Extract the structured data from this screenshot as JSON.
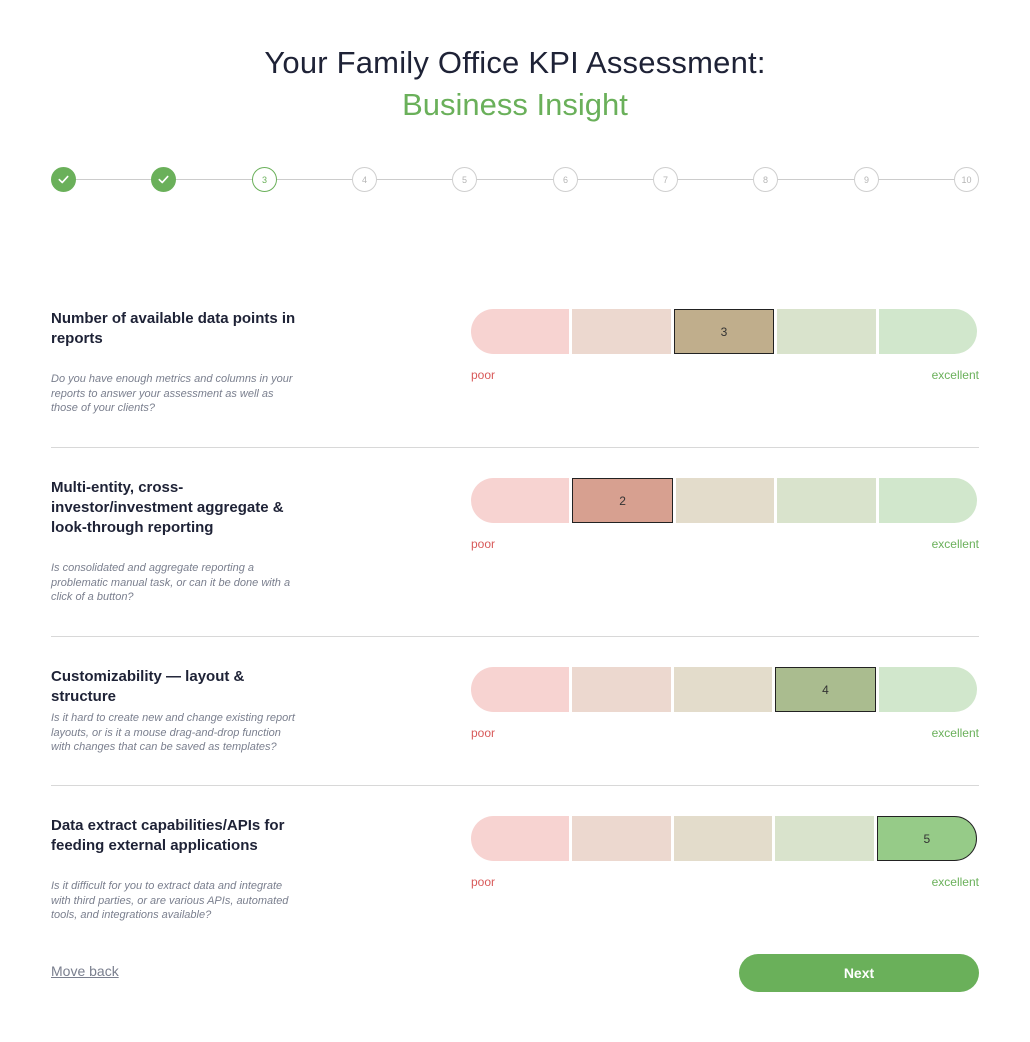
{
  "header": {
    "title_line1": "Your Family Office KPI Assessment:",
    "title_line2": "Business Insight"
  },
  "stepper": {
    "steps": [
      {
        "label": "",
        "state": "done",
        "icon": "check-icon"
      },
      {
        "label": "",
        "state": "done",
        "icon": "check-icon"
      },
      {
        "label": "3",
        "state": "current"
      },
      {
        "label": "4",
        "state": "pending"
      },
      {
        "label": "5",
        "state": "pending"
      },
      {
        "label": "6",
        "state": "pending"
      },
      {
        "label": "7",
        "state": "pending"
      },
      {
        "label": "8",
        "state": "pending"
      },
      {
        "label": "9",
        "state": "pending"
      },
      {
        "label": "10",
        "state": "pending"
      }
    ]
  },
  "scale_labels": {
    "poor": "poor",
    "excellent": "excellent"
  },
  "questions": [
    {
      "title": "Number of available data points in reports",
      "description": "Do you have enough metrics and columns in your reports to answer your assessment as well as those of your clients?",
      "selected": 3
    },
    {
      "title": "Multi-entity, cross-investor/investment aggregate & look-through reporting",
      "description": "Is consolidated and aggregate reporting a problematic manual task, or can it be done with a click of a button?",
      "selected": 2
    },
    {
      "title": "Customizability — layout & structure",
      "description": "Is it hard to create new and change existing report layouts, or is it a mouse drag-and-drop function with changes that can be saved as templates?",
      "selected": 4
    },
    {
      "title": "Data extract capabilities/APIs for feeding external applications",
      "description": "Is it difficult for you to extract data and integrate with third parties, or are various APIs, automated tools, and integrations available?",
      "selected": 5
    }
  ],
  "footer": {
    "back_label": "Move back",
    "next_label": "Next"
  }
}
